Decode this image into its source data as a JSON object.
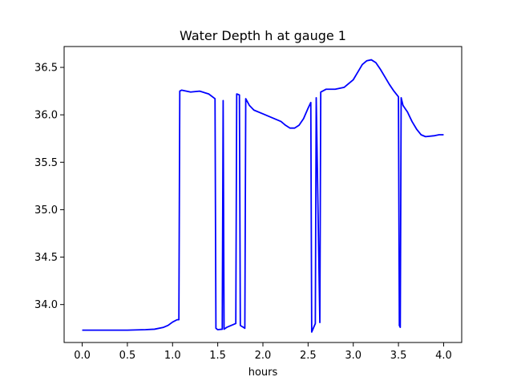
{
  "chart_data": {
    "type": "line",
    "title": "Water Depth h at gauge 1",
    "xlabel": "hours",
    "ylabel": "",
    "xlim": [
      -0.2,
      4.2
    ],
    "ylim": [
      33.6,
      36.72
    ],
    "x_ticks": [
      0.0,
      0.5,
      1.0,
      1.5,
      2.0,
      2.5,
      3.0,
      3.5,
      4.0
    ],
    "x_tick_labels": [
      "0.0",
      "0.5",
      "1.0",
      "1.5",
      "2.0",
      "2.5",
      "3.0",
      "3.5",
      "4.0"
    ],
    "y_ticks": [
      34.0,
      34.5,
      35.0,
      35.5,
      36.0,
      36.5
    ],
    "y_tick_labels": [
      "34.0",
      "34.5",
      "35.0",
      "35.5",
      "36.0",
      "36.5"
    ],
    "grid": false,
    "colors": {
      "line": "#0000ff"
    },
    "series": [
      {
        "x": [
          0.0,
          0.5,
          0.7,
          0.8,
          0.9,
          0.95,
          1.0,
          1.05,
          1.07,
          1.08,
          1.1,
          1.2,
          1.3,
          1.4,
          1.47,
          1.48,
          1.5,
          1.55,
          1.56,
          1.57,
          1.6,
          1.7,
          1.71,
          1.74,
          1.75,
          1.8,
          1.81,
          1.85,
          1.9,
          2.0,
          2.1,
          2.2,
          2.25,
          2.3,
          2.35,
          2.4,
          2.45,
          2.5,
          2.53,
          2.54,
          2.58,
          2.59,
          2.63,
          2.64,
          2.7,
          2.8,
          2.9,
          3.0,
          3.05,
          3.1,
          3.15,
          3.2,
          3.25,
          3.3,
          3.35,
          3.4,
          3.45,
          3.5,
          3.51,
          3.52,
          3.53,
          3.55,
          3.6,
          3.65,
          3.7,
          3.75,
          3.8,
          3.9,
          3.95,
          4.0
        ],
        "y": [
          33.73,
          33.73,
          33.735,
          33.74,
          33.76,
          33.78,
          33.815,
          33.84,
          33.84,
          36.25,
          36.26,
          36.24,
          36.25,
          36.22,
          36.17,
          33.75,
          33.735,
          33.74,
          36.15,
          33.74,
          33.76,
          33.8,
          36.22,
          36.21,
          33.78,
          33.75,
          36.17,
          36.1,
          36.05,
          36.01,
          35.97,
          35.93,
          35.89,
          35.86,
          35.86,
          35.89,
          35.96,
          36.07,
          36.13,
          33.71,
          33.8,
          36.18,
          33.81,
          36.24,
          36.27,
          36.27,
          36.29,
          36.37,
          36.45,
          36.53,
          36.57,
          36.58,
          36.55,
          36.48,
          36.4,
          36.32,
          36.25,
          36.19,
          33.78,
          33.76,
          36.18,
          36.1,
          36.03,
          35.93,
          35.85,
          35.79,
          35.77,
          35.78,
          35.79,
          35.79
        ]
      }
    ]
  }
}
